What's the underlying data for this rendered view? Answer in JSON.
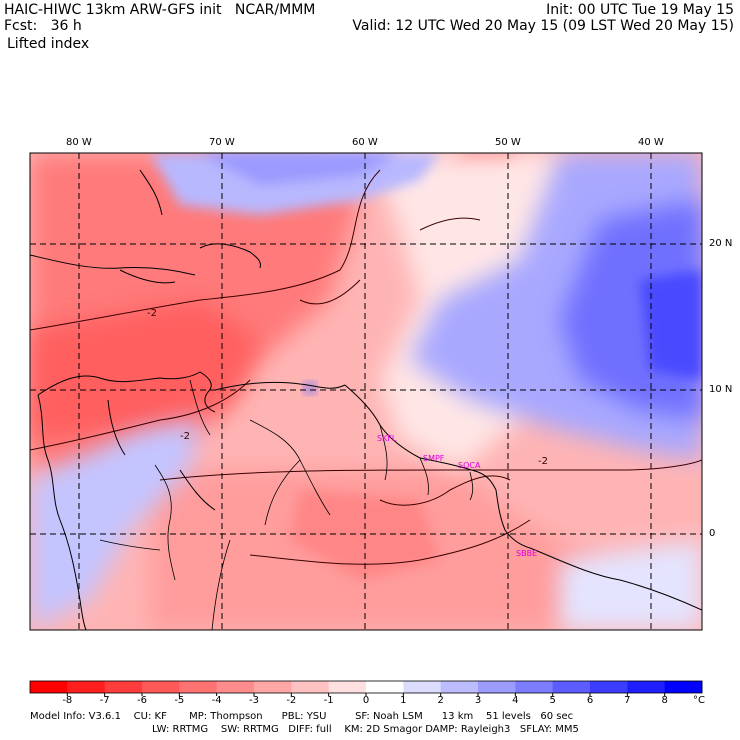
{
  "header": {
    "title_left": "HAIC-HIWC 13km ARW-GFS init   NCAR/MMM",
    "init_right": "Init: 00 UTC Tue 19 May 15",
    "fcst_left": "Fcst:   36 h",
    "valid_right": "Valid: 12 UTC Wed 20 May 15 (09 LST Wed 20 May 15)",
    "field_name": "Lifted index"
  },
  "map": {
    "lon_labels": [
      "80 W",
      "70 W",
      "60 W",
      "50 W",
      "40 W"
    ],
    "lat_labels": [
      "20 N",
      "10 N",
      "0"
    ],
    "contour_labels": [
      "-2",
      "-2",
      "-2"
    ],
    "station_labels": [
      "SKFL",
      "SMPF",
      "SOCA",
      "SBBE"
    ],
    "station_color": "#e000e0"
  },
  "colorbar": {
    "tick_labels": [
      "-8",
      "-7",
      "-6",
      "-5",
      "-4",
      "-3",
      "-2",
      "-1",
      "0",
      "1",
      "2",
      "3",
      "4",
      "5",
      "6",
      "7",
      "8"
    ],
    "unit": "°C",
    "colors": [
      "#ff0000",
      "#ff1e1e",
      "#ff3c3c",
      "#ff5858",
      "#ff7272",
      "#ff8c8c",
      "#ffa6a6",
      "#ffc2c2",
      "#ffe0e0",
      "#ffffff",
      "#dcdcff",
      "#bcbcff",
      "#9c9cff",
      "#7c7cff",
      "#5c5cff",
      "#3c3cff",
      "#1e1eff",
      "#0000ff"
    ]
  },
  "footer": {
    "line1": "Model Info: V3.6.1    CU: KF       MP: Thompson      PBL: YSU         SF: Noah LSM      13 km    51 levels   60 sec",
    "line2": "LW: RRTMG    SW: RRTMG   DIFF: full    KM: 2D Smagor DAMP: Rayleigh3   SFLAY: MM5"
  }
}
